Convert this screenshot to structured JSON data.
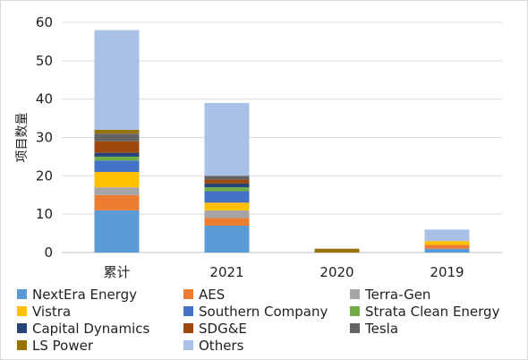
{
  "chart_data": {
    "type": "bar",
    "stacked": true,
    "title": "",
    "xlabel": "",
    "ylabel": "项目数量",
    "ylim": [
      0,
      60
    ],
    "yticks": [
      "0",
      "10",
      "20",
      "30",
      "40",
      "50",
      "60"
    ],
    "categories": [
      "累计",
      "2021",
      "2020",
      "2019"
    ],
    "grid": true,
    "legend_position": "bottom",
    "series": [
      {
        "name": "NextEra Energy",
        "color": "#5b9bd5",
        "values": [
          11,
          7,
          0,
          1
        ]
      },
      {
        "name": "AES",
        "color": "#ed7d31",
        "values": [
          4,
          2,
          0,
          1
        ]
      },
      {
        "name": "Terra-Gen",
        "color": "#a5a5a5",
        "values": [
          2,
          2,
          0,
          0
        ]
      },
      {
        "name": "Vistra",
        "color": "#ffc000",
        "values": [
          4,
          2,
          0,
          1
        ]
      },
      {
        "name": "Southern Company",
        "color": "#4472c4",
        "values": [
          3,
          3,
          0,
          0
        ]
      },
      {
        "name": "Strata Clean Energy",
        "color": "#70ad47",
        "values": [
          1,
          1,
          0,
          0
        ]
      },
      {
        "name": "Capital Dynamics",
        "color": "#264478",
        "values": [
          1,
          1,
          0,
          0
        ]
      },
      {
        "name": "SDG&E",
        "color": "#9e480e",
        "values": [
          3,
          1,
          0,
          0
        ]
      },
      {
        "name": "Tesla",
        "color": "#636363",
        "values": [
          2,
          1,
          0,
          0
        ]
      },
      {
        "name": "LS Power",
        "color": "#997300",
        "values": [
          1,
          0,
          1,
          0
        ]
      },
      {
        "name": "Others",
        "color": "#a9c1e6",
        "values": [
          26,
          19,
          0,
          3
        ]
      }
    ]
  },
  "colors": {
    "gridline": "#d9d9d9",
    "axis": "#bfbfbf"
  }
}
